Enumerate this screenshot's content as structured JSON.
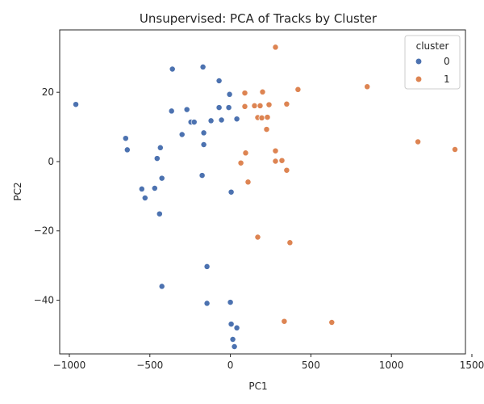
{
  "chart_data": {
    "type": "scatter",
    "title": "Unsupervised: PCA of Tracks by Cluster",
    "xlabel": "PC1",
    "ylabel": "PC2",
    "xlim": [
      -1060,
      1460
    ],
    "ylim": [
      -55.5,
      38
    ],
    "xticks": [
      -1000,
      -500,
      0,
      500,
      1000,
      1500
    ],
    "yticks": [
      -40,
      -20,
      0,
      20
    ],
    "xtick_labels": [
      "−1000",
      "−500",
      "0",
      "500",
      "1000",
      "1500"
    ],
    "ytick_labels": [
      "−40",
      "−20",
      "0",
      "20"
    ],
    "grid": false,
    "legend": {
      "title": "cluster",
      "placement": "top-right",
      "entries": [
        "0",
        "1"
      ]
    },
    "series": [
      {
        "name": "0",
        "color": "#4c72b0",
        "points": [
          [
            -960,
            16.5
          ],
          [
            -650,
            6.7
          ],
          [
            -640,
            3.4
          ],
          [
            -550,
            -7.9
          ],
          [
            -530,
            -10.5
          ],
          [
            -470,
            -7.7
          ],
          [
            -455,
            0.9
          ],
          [
            -435,
            4.0
          ],
          [
            -425,
            -4.8
          ],
          [
            -440,
            -15.1
          ],
          [
            -425,
            -36.0
          ],
          [
            -360,
            26.7
          ],
          [
            -365,
            14.6
          ],
          [
            -300,
            7.8
          ],
          [
            -270,
            15.0
          ],
          [
            -245,
            11.4
          ],
          [
            -225,
            11.4
          ],
          [
            -170,
            27.3
          ],
          [
            -175,
            -4.0
          ],
          [
            -165,
            8.3
          ],
          [
            -165,
            4.9
          ],
          [
            -145,
            -30.3
          ],
          [
            -145,
            -40.9
          ],
          [
            -120,
            11.8
          ],
          [
            -70,
            23.3
          ],
          [
            -70,
            15.6
          ],
          [
            -55,
            12.0
          ],
          [
            -5,
            19.4
          ],
          [
            -10,
            15.6
          ],
          [
            40,
            12.3
          ],
          [
            5,
            -8.8
          ],
          [
            0,
            -40.6
          ],
          [
            5,
            -46.9
          ],
          [
            40,
            -48.0
          ],
          [
            15,
            -51.3
          ],
          [
            25,
            -53.4
          ]
        ]
      },
      {
        "name": "1",
        "color": "#dd8452",
        "points": [
          [
            280,
            33.0
          ],
          [
            850,
            21.6
          ],
          [
            420,
            20.8
          ],
          [
            200,
            20.1
          ],
          [
            90,
            19.8
          ],
          [
            350,
            16.6
          ],
          [
            240,
            16.4
          ],
          [
            150,
            16.1
          ],
          [
            185,
            16.1
          ],
          [
            90,
            15.9
          ],
          [
            170,
            12.7
          ],
          [
            195,
            12.6
          ],
          [
            230,
            12.8
          ],
          [
            225,
            9.3
          ],
          [
            1165,
            5.7
          ],
          [
            1395,
            3.5
          ],
          [
            95,
            2.5
          ],
          [
            280,
            3.1
          ],
          [
            320,
            0.3
          ],
          [
            280,
            0.1
          ],
          [
            65,
            -0.4
          ],
          [
            350,
            -2.5
          ],
          [
            110,
            -5.9
          ],
          [
            170,
            -21.8
          ],
          [
            370,
            -23.4
          ],
          [
            335,
            -46.1
          ],
          [
            630,
            -46.4
          ]
        ]
      }
    ]
  }
}
